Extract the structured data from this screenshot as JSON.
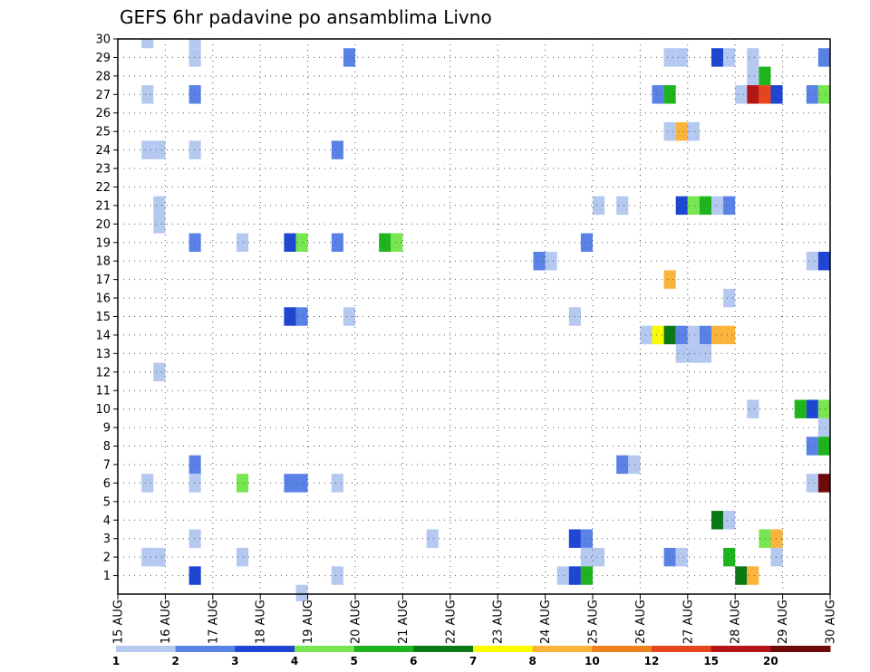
{
  "chart_data": {
    "type": "heatmap",
    "title": "GEFS 6hr padavine po ansamblima Livno",
    "x_tick_labels": [
      "15 AUG",
      "16 AUG",
      "17 AUG",
      "18 AUG",
      "19 AUG",
      "20 AUG",
      "21 AUG",
      "22 AUG",
      "23 AUG",
      "24 AUG",
      "25 AUG",
      "26 AUG",
      "27 AUG",
      "28 AUG",
      "29 AUG",
      "30 AUG"
    ],
    "y_tick_labels": [
      "1",
      "2",
      "3",
      "4",
      "5",
      "6",
      "7",
      "8",
      "9",
      "10",
      "11",
      "12",
      "13",
      "14",
      "15",
      "16",
      "17",
      "18",
      "19",
      "20",
      "21",
      "22",
      "23",
      "24",
      "25",
      "26",
      "27",
      "28",
      "29",
      "30"
    ],
    "x_unit": "6-hour step index since 15 AUG 00Z",
    "xlim": [
      0,
      60
    ],
    "ylim": [
      0,
      30
    ],
    "grid": true,
    "colorbar": {
      "labels": [
        "1",
        "2",
        "3",
        "4",
        "5",
        "6",
        "7",
        "8",
        "10",
        "12",
        "15",
        "20"
      ],
      "colors": [
        "#b4c8f0",
        "#5a82e6",
        "#1e46d2",
        "#78e650",
        "#1eb41e",
        "#0a7814",
        "#fafa00",
        "#fab43c",
        "#f0821e",
        "#e6461e",
        "#b41414",
        "#6e0a0a"
      ]
    },
    "cells": [
      [
        2.5,
        30,
        1
      ],
      [
        6.5,
        30,
        1
      ],
      [
        6.5,
        29,
        1
      ],
      [
        19.5,
        29,
        2
      ],
      [
        46.5,
        29,
        1
      ],
      [
        47.5,
        29,
        1
      ],
      [
        50.5,
        29,
        3
      ],
      [
        51.5,
        29,
        1
      ],
      [
        53.5,
        29,
        1
      ],
      [
        59.5,
        29,
        2
      ],
      [
        53.5,
        28,
        1
      ],
      [
        54.5,
        28,
        5
      ],
      [
        2.5,
        27,
        1
      ],
      [
        6.5,
        27,
        2
      ],
      [
        45.5,
        27,
        2
      ],
      [
        46.5,
        27,
        5
      ],
      [
        52.5,
        27,
        1
      ],
      [
        53.5,
        27,
        11
      ],
      [
        54.5,
        27,
        10
      ],
      [
        55.5,
        27,
        3
      ],
      [
        58.5,
        27,
        2
      ],
      [
        59.5,
        27,
        4
      ],
      [
        46.5,
        25,
        1
      ],
      [
        47.5,
        25,
        8
      ],
      [
        48.5,
        25,
        1
      ],
      [
        2.5,
        24,
        1
      ],
      [
        3.5,
        24,
        1
      ],
      [
        6.5,
        24,
        1
      ],
      [
        18.5,
        24,
        2
      ],
      [
        3.5,
        21,
        1
      ],
      [
        40.5,
        21,
        1
      ],
      [
        42.5,
        21,
        1
      ],
      [
        47.5,
        21,
        3
      ],
      [
        48.5,
        21,
        4
      ],
      [
        49.5,
        21,
        5
      ],
      [
        50.5,
        21,
        1
      ],
      [
        51.5,
        21,
        2
      ],
      [
        3.5,
        20,
        1
      ],
      [
        6.5,
        19,
        2
      ],
      [
        10.5,
        19,
        1
      ],
      [
        14.5,
        19,
        3
      ],
      [
        15.5,
        19,
        4
      ],
      [
        18.5,
        19,
        2
      ],
      [
        22.5,
        19,
        5
      ],
      [
        23.5,
        19,
        4
      ],
      [
        39.5,
        19,
        2
      ],
      [
        35.5,
        18,
        2
      ],
      [
        36.5,
        18,
        1
      ],
      [
        58.5,
        18,
        1
      ],
      [
        59.5,
        18,
        3
      ],
      [
        46.5,
        17,
        8
      ],
      [
        51.5,
        16,
        1
      ],
      [
        14.5,
        15,
        3
      ],
      [
        15.5,
        15,
        2
      ],
      [
        19.5,
        15,
        1
      ],
      [
        38.5,
        15,
        1
      ],
      [
        44.5,
        14,
        1
      ],
      [
        45.5,
        14,
        7
      ],
      [
        46.5,
        14,
        6
      ],
      [
        47.5,
        14,
        2
      ],
      [
        48.5,
        14,
        1
      ],
      [
        49.5,
        14,
        2
      ],
      [
        50.5,
        14,
        8
      ],
      [
        51.5,
        14,
        8
      ],
      [
        47.5,
        13,
        1
      ],
      [
        48.5,
        13,
        1
      ],
      [
        49.5,
        13,
        1
      ],
      [
        3.5,
        12,
        1
      ],
      [
        53.5,
        10,
        1
      ],
      [
        57.5,
        10,
        5
      ],
      [
        58.5,
        10,
        3
      ],
      [
        59.5,
        10,
        4
      ],
      [
        59.5,
        9,
        1
      ],
      [
        58.5,
        8,
        2
      ],
      [
        59.5,
        8,
        5
      ],
      [
        6.5,
        7,
        2
      ],
      [
        42.5,
        7,
        2
      ],
      [
        43.5,
        7,
        1
      ],
      [
        2.5,
        6,
        1
      ],
      [
        6.5,
        6,
        1
      ],
      [
        10.5,
        6,
        4
      ],
      [
        14.5,
        6,
        2
      ],
      [
        15.5,
        6,
        2
      ],
      [
        18.5,
        6,
        1
      ],
      [
        58.5,
        6,
        1
      ],
      [
        59.5,
        6,
        12
      ],
      [
        50.5,
        4,
        6
      ],
      [
        51.5,
        4,
        1
      ],
      [
        6.5,
        3,
        1
      ],
      [
        26.5,
        3,
        1
      ],
      [
        38.5,
        3,
        3
      ],
      [
        39.5,
        3,
        2
      ],
      [
        54.5,
        3,
        4
      ],
      [
        55.5,
        3,
        8
      ],
      [
        2.5,
        2,
        1
      ],
      [
        3.5,
        2,
        1
      ],
      [
        10.5,
        2,
        1
      ],
      [
        39.5,
        2,
        1
      ],
      [
        40.5,
        2,
        1
      ],
      [
        46.5,
        2,
        2
      ],
      [
        47.5,
        2,
        1
      ],
      [
        51.5,
        2,
        5
      ],
      [
        55.5,
        2,
        1
      ],
      [
        6.5,
        1,
        3
      ],
      [
        18.5,
        1,
        1
      ],
      [
        37.5,
        1,
        1
      ],
      [
        38.5,
        1,
        3
      ],
      [
        39.5,
        1,
        5
      ],
      [
        52.5,
        1,
        6
      ],
      [
        53.5,
        1,
        8
      ],
      [
        15.5,
        0,
        1
      ]
    ]
  }
}
